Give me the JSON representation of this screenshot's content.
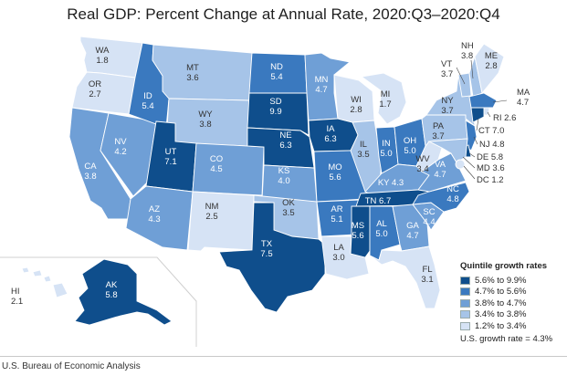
{
  "title": "Real GDP: Percent Change at Annual Rate, 2020:Q3–2020:Q4",
  "source": "U.S. Bureau of Economic Analysis",
  "legend": {
    "title": "Quintile growth rates",
    "items": [
      {
        "label": "5.6% to 9.9%",
        "color": "#0f4e8c"
      },
      {
        "label": "4.7% to 5.6%",
        "color": "#3a79bf"
      },
      {
        "label": "3.8% to 4.7%",
        "color": "#6f9fd6"
      },
      {
        "label": "3.4% to 3.8%",
        "color": "#a6c4e8"
      },
      {
        "label": "1.2% to 3.4%",
        "color": "#d6e3f5"
      }
    ],
    "us_rate": "U.S. growth rate = 4.3%"
  },
  "states": {
    "WA": {
      "abbr": "WA",
      "value": "1.8",
      "quintile": 5
    },
    "OR": {
      "abbr": "OR",
      "value": "2.7",
      "quintile": 5
    },
    "CA": {
      "abbr": "CA",
      "value": "3.8",
      "quintile": 3
    },
    "NV": {
      "abbr": "NV",
      "value": "4.2",
      "quintile": 3
    },
    "ID": {
      "abbr": "ID",
      "value": "5.4",
      "quintile": 2
    },
    "MT": {
      "abbr": "MT",
      "value": "3.6",
      "quintile": 4
    },
    "WY": {
      "abbr": "WY",
      "value": "3.8",
      "quintile": 4
    },
    "UT": {
      "abbr": "UT",
      "value": "7.1",
      "quintile": 1
    },
    "AZ": {
      "abbr": "AZ",
      "value": "4.3",
      "quintile": 3
    },
    "CO": {
      "abbr": "CO",
      "value": "4.5",
      "quintile": 3
    },
    "NM": {
      "abbr": "NM",
      "value": "2.5",
      "quintile": 5
    },
    "ND": {
      "abbr": "ND",
      "value": "5.4",
      "quintile": 2
    },
    "SD": {
      "abbr": "SD",
      "value": "9.9",
      "quintile": 1
    },
    "NE": {
      "abbr": "NE",
      "value": "6.3",
      "quintile": 1
    },
    "KS": {
      "abbr": "KS",
      "value": "4.0",
      "quintile": 3
    },
    "OK": {
      "abbr": "OK",
      "value": "3.5",
      "quintile": 4
    },
    "TX": {
      "abbr": "TX",
      "value": "7.5",
      "quintile": 1
    },
    "MN": {
      "abbr": "MN",
      "value": "4.7",
      "quintile": 3
    },
    "IA": {
      "abbr": "IA",
      "value": "6.3",
      "quintile": 1
    },
    "MO": {
      "abbr": "MO",
      "value": "5.6",
      "quintile": 2
    },
    "AR": {
      "abbr": "AR",
      "value": "5.1",
      "quintile": 2
    },
    "LA": {
      "abbr": "LA",
      "value": "3.0",
      "quintile": 5
    },
    "WI": {
      "abbr": "WI",
      "value": "2.8",
      "quintile": 5
    },
    "IL": {
      "abbr": "IL",
      "value": "3.5",
      "quintile": 4
    },
    "MI": {
      "abbr": "MI",
      "value": "1.7",
      "quintile": 5
    },
    "IN": {
      "abbr": "IN",
      "value": "5.0",
      "quintile": 2
    },
    "OH": {
      "abbr": "OH",
      "value": "5.0",
      "quintile": 2
    },
    "KY": {
      "abbr": "KY",
      "value": "4.3",
      "quintile": 3
    },
    "TN": {
      "abbr": "TN",
      "value": "6.7",
      "quintile": 1
    },
    "MS": {
      "abbr": "MS",
      "value": "5.6",
      "quintile": 1
    },
    "AL": {
      "abbr": "AL",
      "value": "5.0",
      "quintile": 2
    },
    "GA": {
      "abbr": "GA",
      "value": "4.7",
      "quintile": 3
    },
    "FL": {
      "abbr": "FL",
      "value": "3.1",
      "quintile": 5
    },
    "SC": {
      "abbr": "SC",
      "value": "4.4",
      "quintile": 3
    },
    "NC": {
      "abbr": "NC",
      "value": "4.8",
      "quintile": 2
    },
    "VA": {
      "abbr": "VA",
      "value": "4.7",
      "quintile": 3
    },
    "WV": {
      "abbr": "WV",
      "value": "3.4",
      "quintile": 5
    },
    "PA": {
      "abbr": "PA",
      "value": "3.7",
      "quintile": 4
    },
    "NY": {
      "abbr": "NY",
      "value": "3.7",
      "quintile": 4
    },
    "VT": {
      "abbr": "VT",
      "value": "3.7",
      "quintile": 4
    },
    "NH": {
      "abbr": "NH",
      "value": "3.8",
      "quintile": 4
    },
    "ME": {
      "abbr": "ME",
      "value": "2.8",
      "quintile": 5
    },
    "MA": {
      "abbr": "MA",
      "value": "4.7",
      "quintile": 2
    },
    "RI": {
      "abbr": "RI",
      "value": "2.6",
      "quintile": 5
    },
    "CT": {
      "abbr": "CT",
      "value": "7.0",
      "quintile": 1
    },
    "NJ": {
      "abbr": "NJ",
      "value": "4.8",
      "quintile": 2
    },
    "DE": {
      "abbr": "DE",
      "value": "5.8",
      "quintile": 1
    },
    "MD": {
      "abbr": "MD",
      "value": "3.6",
      "quintile": 4
    },
    "DC": {
      "abbr": "DC",
      "value": "1.2",
      "quintile": 5
    },
    "AK": {
      "abbr": "AK",
      "value": "5.8",
      "quintile": 1
    },
    "HI": {
      "abbr": "HI",
      "value": "2.1",
      "quintile": 5
    }
  }
}
